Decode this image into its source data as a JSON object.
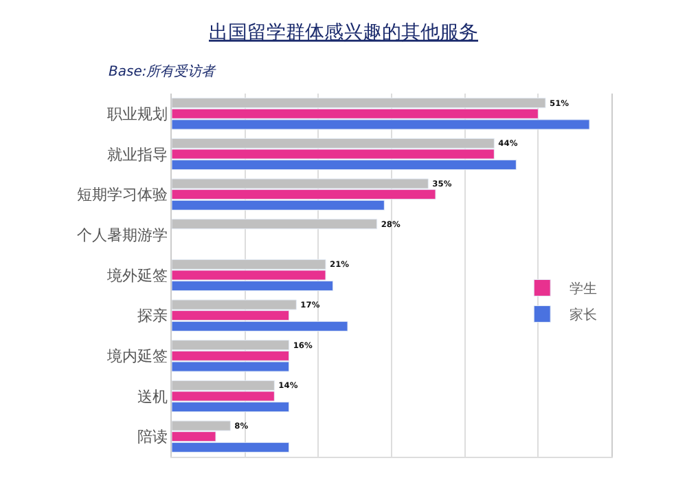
{
  "chart_data": {
    "type": "bar",
    "orientation": "horizontal",
    "title": "出国留学群体感兴趣的其他服务",
    "subtitle": "Base:所有受访者",
    "categories": [
      "职业规划",
      "就业指导",
      "短期学习体验",
      "个人暑期游学",
      "境外延签",
      "探亲",
      "境内延签",
      "送机",
      "陪读"
    ],
    "series": [
      {
        "color": "#c0c0c0",
        "values": [
          51,
          44,
          35,
          28,
          21,
          17,
          16,
          14,
          8
        ],
        "value_labels": [
          "51%",
          "44%",
          "35%",
          "28%",
          "21%",
          "17%",
          "16%",
          "14%",
          "8%"
        ]
      },
      {
        "name": "学生",
        "color": "#e8318f",
        "values": [
          50,
          44,
          36,
          null,
          21,
          16,
          16,
          14,
          6
        ]
      },
      {
        "name": "家长",
        "color": "#4a72e0",
        "values": [
          57,
          47,
          29,
          null,
          22,
          24,
          16,
          16,
          16
        ]
      }
    ],
    "xlim": [
      0,
      60
    ],
    "xticks": [
      {
        "value": 0,
        "label": null
      },
      {
        "value": 10,
        "label": null
      },
      {
        "value": 20,
        "label": null
      },
      {
        "value": 30,
        "label": null
      },
      {
        "value": 40,
        "label": null
      },
      {
        "value": 50,
        "label": null
      },
      {
        "value": 60,
        "label": null
      }
    ],
    "grid": "x",
    "legend": "right",
    "tick_labels": "y"
  }
}
